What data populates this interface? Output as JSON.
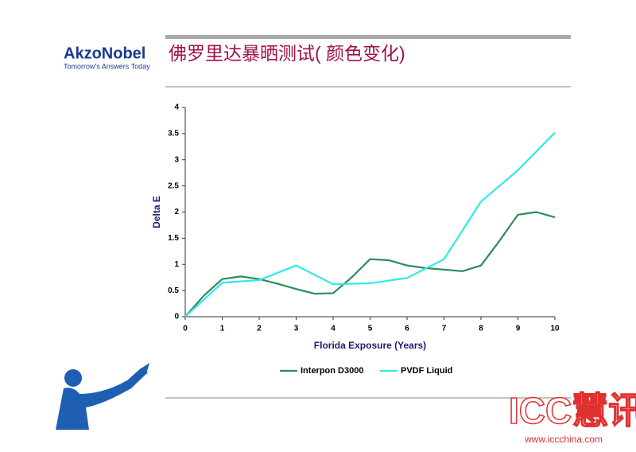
{
  "header": {
    "logo": "AkzoNobel",
    "tagline": "Tomorrow's Answers Today",
    "title": "佛罗里达暴晒测试( 颜色变化)"
  },
  "chart_data": {
    "type": "line",
    "xlabel": "Florida  Exposure (Years)",
    "ylabel": "Delta E",
    "xlim": [
      0,
      10
    ],
    "xticks": [
      0,
      1,
      2,
      3,
      4,
      5,
      6,
      7,
      8,
      9,
      10
    ],
    "ylim": [
      0,
      4
    ],
    "yticks": [
      0,
      0.5,
      1,
      1.5,
      2,
      2.5,
      3,
      3.5,
      4
    ],
    "series": [
      {
        "name": "Interpon D3000",
        "color": "#2e8b57",
        "x": [
          0,
          0.5,
          1,
          1.5,
          2,
          2.5,
          3,
          3.5,
          4,
          4.5,
          5,
          5.5,
          6,
          6.5,
          7,
          7.5,
          8,
          8.5,
          9,
          9.5,
          10
        ],
        "values": [
          0,
          0.4,
          0.72,
          0.77,
          0.72,
          0.63,
          0.53,
          0.44,
          0.45,
          0.75,
          1.1,
          1.08,
          0.98,
          0.93,
          0.9,
          0.87,
          0.98,
          1.45,
          1.95,
          2.0,
          1.9
        ]
      },
      {
        "name": "PVDF Liquid",
        "color": "#33e8e8",
        "x": [
          0,
          1,
          2,
          3,
          4,
          5,
          6,
          7,
          8,
          9,
          10
        ],
        "values": [
          0,
          0.65,
          0.7,
          0.98,
          0.62,
          0.64,
          0.74,
          1.1,
          2.2,
          2.8,
          3.52
        ]
      }
    ]
  },
  "watermark": {
    "brand": "ICC慧讯网",
    "url": "www.iccchina.com"
  }
}
